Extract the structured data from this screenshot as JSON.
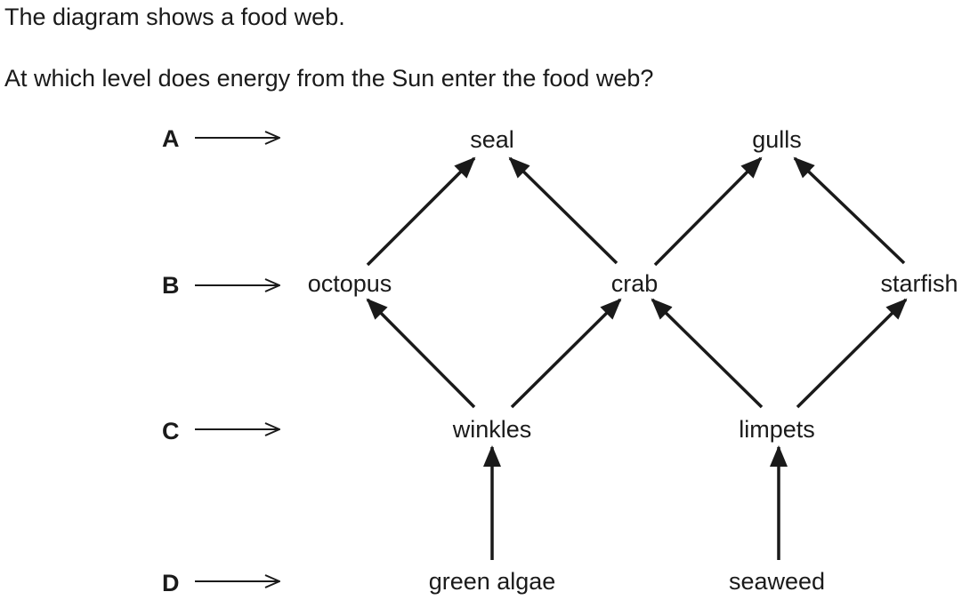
{
  "question": {
    "intro": "The diagram shows a food web.",
    "prompt": "At which level does energy from the Sun enter the food web?"
  },
  "levels": [
    "A",
    "B",
    "C",
    "D"
  ],
  "organisms": {
    "seal": "seal",
    "gulls": "gulls",
    "octopus": "octopus",
    "crab": "crab",
    "starfish": "starfish",
    "winkles": "winkles",
    "limpets": "limpets",
    "green_algae": "green algae",
    "seaweed": "seaweed"
  },
  "feeding_links": [
    {
      "from": "green algae",
      "to": "winkles"
    },
    {
      "from": "seaweed",
      "to": "limpets"
    },
    {
      "from": "winkles",
      "to": "octopus"
    },
    {
      "from": "winkles",
      "to": "crab"
    },
    {
      "from": "limpets",
      "to": "crab"
    },
    {
      "from": "limpets",
      "to": "starfish"
    },
    {
      "from": "octopus",
      "to": "seal"
    },
    {
      "from": "crab",
      "to": "seal"
    },
    {
      "from": "crab",
      "to": "gulls"
    },
    {
      "from": "starfish",
      "to": "gulls"
    }
  ],
  "colors": {
    "ink": "#1a1a1a",
    "background": "#ffffff"
  }
}
